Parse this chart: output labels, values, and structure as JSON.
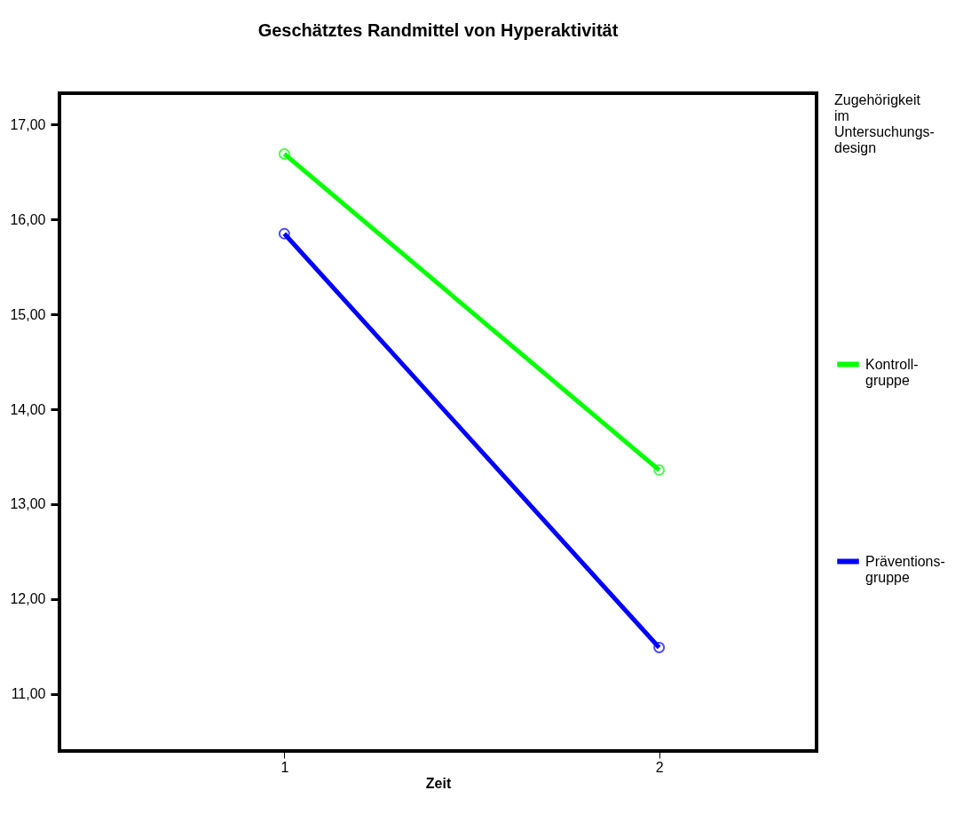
{
  "chart_data": {
    "type": "line",
    "title": "Geschätztes Randmittel von Hyperaktivität",
    "xlabel": "Zeit",
    "legend_title": "Zugehörigkeit im Untersuchungs-design",
    "x": [
      1,
      2
    ],
    "series": [
      {
        "name": "Kontroll-gruppe",
        "color": "#00ff00",
        "values": [
          16.69,
          13.36
        ]
      },
      {
        "name": "Präventions-gruppe",
        "color": "#0000ff",
        "values": [
          15.85,
          11.49
        ]
      }
    ],
    "xlim": [
      0.4,
      2.42
    ],
    "xticks": [
      1,
      2
    ],
    "ylim": [
      10.4,
      17.33
    ],
    "yticks": [
      {
        "value": 11,
        "label": "11,00"
      },
      {
        "value": 12,
        "label": "12,00"
      },
      {
        "value": 13,
        "label": "13,00"
      },
      {
        "value": 14,
        "label": "14,00"
      },
      {
        "value": 15,
        "label": "15,00"
      },
      {
        "value": 16,
        "label": "16,00"
      },
      {
        "value": 17,
        "label": "17,00"
      }
    ],
    "grid": false,
    "legend": "right",
    "marker": "circle",
    "line_style": "solid"
  }
}
